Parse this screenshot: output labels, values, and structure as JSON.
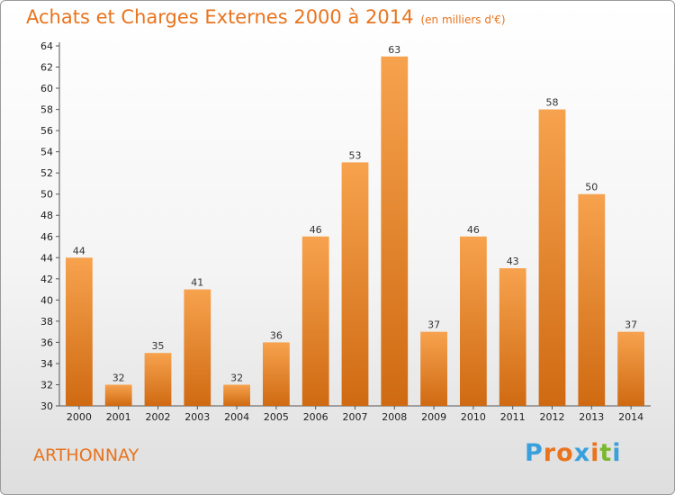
{
  "title": "Achats et Charges Externes 2000 à 2014",
  "subtitle": "(en milliers d'€)",
  "place": "ARTHONNAY",
  "logo": {
    "letters": [
      "P",
      "r",
      "o",
      "x",
      "i",
      "t",
      "i"
    ],
    "colors": [
      "#3aa0dc",
      "#e8741e",
      "#e8741e",
      "#3aa0dc",
      "#e8741e",
      "#7ab830",
      "#3aa0dc"
    ]
  },
  "colors": {
    "bar_top": "#f7a24e",
    "bar_bottom": "#cf6a12",
    "accent": "#e8741e"
  },
  "chart_data": {
    "type": "bar",
    "categories": [
      "2000",
      "2001",
      "2002",
      "2003",
      "2004",
      "2005",
      "2006",
      "2007",
      "2008",
      "2009",
      "2010",
      "2011",
      "2012",
      "2013",
      "2014"
    ],
    "values": [
      44,
      32,
      35,
      41,
      32,
      36,
      46,
      53,
      63,
      37,
      46,
      43,
      58,
      50,
      37
    ],
    "title": "Achats et Charges Externes 2000 à 2014",
    "subtitle": "(en milliers d'€)",
    "xlabel": "",
    "ylabel": "",
    "ylim": [
      30,
      64
    ],
    "yticks": [
      30,
      32,
      34,
      36,
      38,
      40,
      42,
      44,
      46,
      48,
      50,
      52,
      54,
      56,
      58,
      60,
      62,
      64
    ],
    "grid": false,
    "legend": "none"
  }
}
